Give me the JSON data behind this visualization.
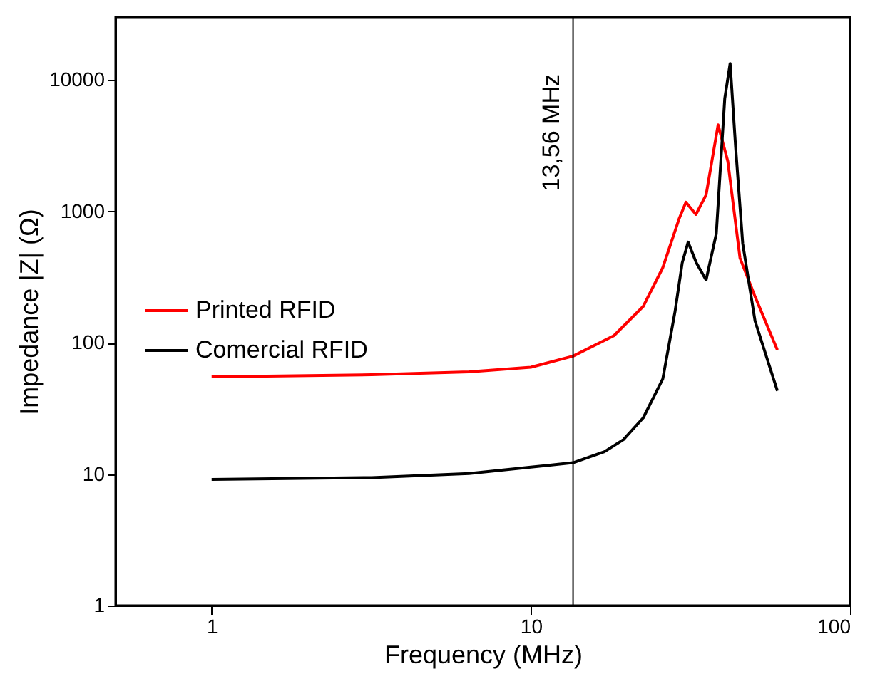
{
  "chart_data": {
    "type": "line",
    "xlabel": "Frequency (MHz)",
    "ylabel": "Impedance |Z| (Ω)",
    "log": "xy",
    "xlim": [
      0.5,
      100
    ],
    "xticks": [
      1,
      10,
      100
    ],
    "ylim": [
      1,
      30000
    ],
    "yticks": [
      1,
      10,
      100,
      1000,
      10000
    ],
    "grid": false,
    "legend": "left",
    "ref_lines": [
      {
        "axis": "x",
        "value": 13.56,
        "label": "13,56 MHz",
        "color": "#000000"
      }
    ],
    "series": [
      {
        "name": "Printed RFID",
        "color": "#ff0000",
        "x": [
          1,
          3.17,
          6.4,
          10,
          13.56,
          18.2,
          22.5,
          25.9,
          29.1,
          30.6,
          32.9,
          35.4,
          38.6,
          41.4,
          45.2,
          50.4,
          59.2
        ],
        "values": [
          55,
          57,
          60,
          65,
          79,
          113,
          189,
          372,
          869,
          1170,
          946,
          1330,
          4540,
          2400,
          441,
          224,
          88
        ]
      },
      {
        "name": "Comercial RFID",
        "color": "#000000",
        "x": [
          1,
          3.17,
          6.4,
          10,
          13.56,
          17.0,
          19.5,
          22.5,
          25.9,
          28.3,
          29.8,
          31.1,
          33.0,
          35.4,
          38.1,
          40.5,
          42.1,
          43.8,
          46.1,
          50.4,
          59.2
        ],
        "values": [
          9.1,
          9.4,
          10.1,
          11.3,
          12.2,
          14.8,
          18.3,
          26.8,
          53,
          173,
          405,
          582,
          405,
          300,
          673,
          7200,
          13300,
          3080,
          569,
          146,
          43
        ]
      }
    ]
  }
}
